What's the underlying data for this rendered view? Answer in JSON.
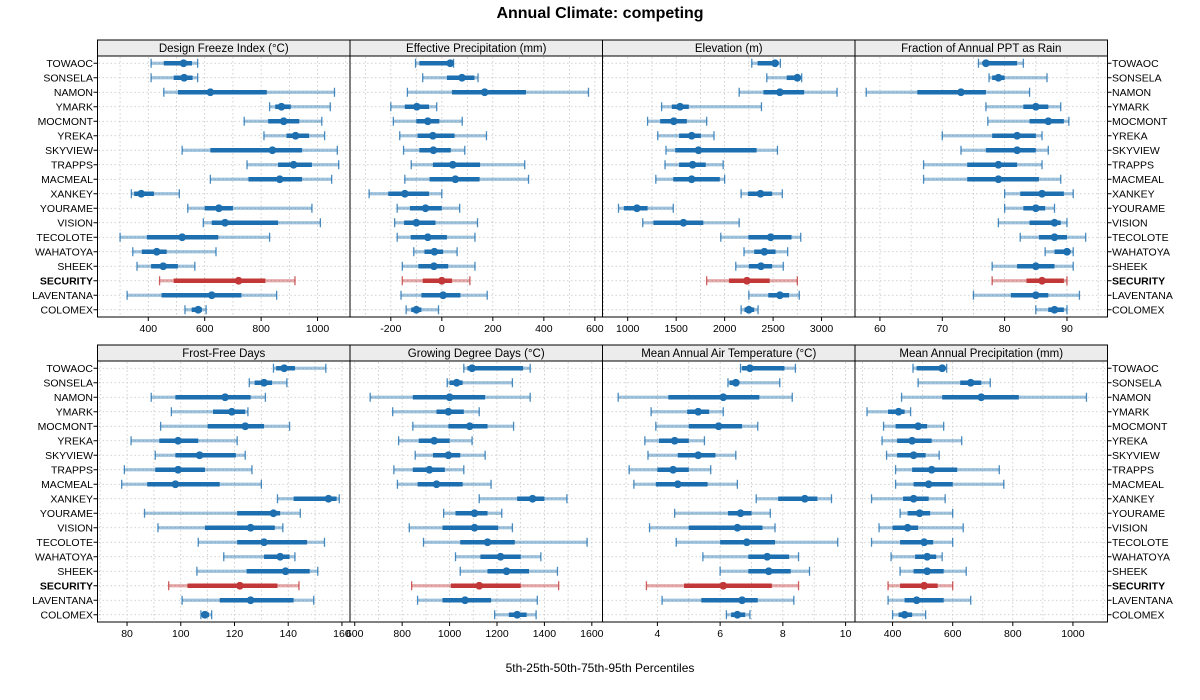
{
  "title": "Annual Climate: competing",
  "xlabel": "5th-25th-50th-75th-95th Percentiles",
  "colors": {
    "blue": "#1d6fb0",
    "red": "#c23737",
    "strip_bg": "#ececec",
    "grid": "#c3c3c3",
    "border": "#000000"
  },
  "chart_data": {
    "type": "interval",
    "note": "each row = [5th,25th,50th,75th,95th] percentiles per station",
    "percentile_labels": [
      5,
      25,
      50,
      75,
      95
    ],
    "stations": [
      "TOWAOC",
      "SONSELA",
      "NAMON",
      "YMARK",
      "MOCMONT",
      "YREKA",
      "SKYVIEW",
      "TRAPPS",
      "MACMEAL",
      "XANKEY",
      "YOURAME",
      "VISION",
      "TECOLOTE",
      "WAHATOYA",
      "SHEEK",
      "SECURITY",
      "LAVENTANA",
      "COLOMEX"
    ],
    "highlight": "SECURITY",
    "panels": [
      {
        "title": "Design Freeze Index (°C)",
        "grid_row": 0,
        "grid_col": 0,
        "xlim": [
          220,
          1115
        ],
        "ticks": [
          400,
          600,
          800,
          1000
        ],
        "grid_step": 100,
        "values": [
          [
            410,
            455,
            525,
            555,
            575
          ],
          [
            410,
            490,
            527,
            557,
            575
          ],
          [
            455,
            505,
            620,
            820,
            1060
          ],
          [
            830,
            850,
            872,
            905,
            1045
          ],
          [
            740,
            825,
            880,
            935,
            1015
          ],
          [
            810,
            890,
            922,
            970,
            1025
          ],
          [
            520,
            620,
            840,
            945,
            1070
          ],
          [
            750,
            860,
            915,
            980,
            1075
          ],
          [
            620,
            755,
            866,
            945,
            1050
          ],
          [
            340,
            350,
            375,
            420,
            510
          ],
          [
            540,
            600,
            650,
            700,
            980
          ],
          [
            595,
            625,
            672,
            860,
            1010
          ],
          [
            300,
            395,
            520,
            648,
            830
          ],
          [
            345,
            377,
            430,
            465,
            640
          ],
          [
            360,
            410,
            453,
            505,
            565
          ],
          [
            440,
            490,
            720,
            815,
            920
          ],
          [
            325,
            447,
            625,
            730,
            855
          ],
          [
            530,
            554,
            577,
            590,
            605
          ]
        ]
      },
      {
        "title": "Effective Precipitation (mm)",
        "grid_row": 0,
        "grid_col": 1,
        "xlim": [
          -360,
          630
        ],
        "ticks": [
          -200,
          0,
          200,
          400,
          600
        ],
        "grid_step": 100,
        "values": [
          [
            -103,
            -88,
            33,
            40,
            46
          ],
          [
            -75,
            20,
            79,
            128,
            142
          ],
          [
            -135,
            40,
            168,
            330,
            575
          ],
          [
            -200,
            -145,
            -98,
            -50,
            -20
          ],
          [
            -190,
            -100,
            -55,
            -10,
            80
          ],
          [
            -165,
            -95,
            -35,
            50,
            175
          ],
          [
            -150,
            -88,
            -33,
            35,
            90
          ],
          [
            -120,
            -35,
            43,
            150,
            325
          ],
          [
            -145,
            -48,
            53,
            148,
            340
          ],
          [
            -285,
            -210,
            -145,
            -50,
            0
          ],
          [
            -175,
            -125,
            -64,
            0,
            70
          ],
          [
            -185,
            -148,
            -100,
            -25,
            140
          ],
          [
            -175,
            -122,
            -55,
            20,
            130
          ],
          [
            -110,
            -68,
            -29,
            5,
            60
          ],
          [
            -155,
            -92,
            -31,
            25,
            130
          ],
          [
            -155,
            -75,
            0,
            40,
            110
          ],
          [
            -160,
            -80,
            5,
            73,
            178
          ],
          [
            -140,
            -120,
            -100,
            -80,
            -13
          ]
        ]
      },
      {
        "title": "Elevation (m)",
        "grid_row": 0,
        "grid_col": 2,
        "xlim": [
          740,
          3345
        ],
        "ticks": [
          1000,
          1500,
          2000,
          2500,
          3000
        ],
        "grid_step": 250,
        "values": [
          [
            2280,
            2340,
            2520,
            2550,
            2575
          ],
          [
            2435,
            2640,
            2750,
            2775,
            2795
          ],
          [
            2150,
            2400,
            2570,
            2820,
            3160
          ],
          [
            1350,
            1455,
            1540,
            1630,
            2380
          ],
          [
            1205,
            1335,
            1475,
            1610,
            1815
          ],
          [
            1310,
            1530,
            1660,
            1755,
            1890
          ],
          [
            1395,
            1490,
            1730,
            2330,
            2545
          ],
          [
            1385,
            1530,
            1670,
            1805,
            1985
          ],
          [
            1290,
            1470,
            1660,
            1950,
            2000
          ],
          [
            2170,
            2240,
            2370,
            2490,
            2595
          ],
          [
            905,
            960,
            1095,
            1205,
            1470
          ],
          [
            1155,
            1265,
            1575,
            1780,
            2150
          ],
          [
            1960,
            2245,
            2475,
            2690,
            2785
          ],
          [
            2200,
            2305,
            2410,
            2525,
            2650
          ],
          [
            2115,
            2250,
            2375,
            2490,
            2605
          ],
          [
            1815,
            2045,
            2230,
            2465,
            2750
          ],
          [
            2250,
            2450,
            2570,
            2665,
            2770
          ],
          [
            2170,
            2205,
            2250,
            2305,
            2345
          ]
        ]
      },
      {
        "title": "Fraction of Annual PPT as Rain",
        "grid_row": 0,
        "grid_col": 3,
        "xlim": [
          56,
          96.5
        ],
        "ticks": [
          60,
          70,
          80,
          90
        ],
        "grid_step": 5,
        "values": [
          [
            75.8,
            76.5,
            77,
            82,
            83
          ],
          [
            77.5,
            78,
            79,
            80,
            86.8
          ],
          [
            57.8,
            66,
            73,
            77,
            84
          ],
          [
            77,
            83,
            85,
            87,
            89
          ],
          [
            77.3,
            84,
            87,
            89.5,
            90.3
          ],
          [
            70,
            78,
            82,
            85,
            86
          ],
          [
            73,
            77,
            82,
            85,
            87
          ],
          [
            67,
            74,
            79,
            82,
            86
          ],
          [
            67,
            74,
            79,
            85.5,
            89
          ],
          [
            80,
            82.5,
            86,
            89.5,
            91
          ],
          [
            80,
            83,
            85,
            86.5,
            88
          ],
          [
            79,
            84,
            88,
            89,
            90
          ],
          [
            82.5,
            85.5,
            88,
            90,
            93
          ],
          [
            86.5,
            88,
            90,
            90.5,
            91
          ],
          [
            78,
            82,
            85,
            88,
            91
          ],
          [
            78,
            83.5,
            86,
            89.5,
            90
          ],
          [
            75,
            81,
            85,
            87,
            92
          ],
          [
            85,
            87,
            88,
            89.5,
            90
          ]
        ]
      },
      {
        "title": "Frost-Free Days",
        "grid_row": 1,
        "grid_col": 0,
        "xlim": [
          69,
          163
        ],
        "ticks": [
          80,
          100,
          120,
          140,
          160
        ],
        "grid_step": 10,
        "values": [
          [
            134.5,
            135.5,
            138.5,
            142.5,
            154
          ],
          [
            125.5,
            127.5,
            131,
            134,
            139.5
          ],
          [
            89,
            98,
            116.5,
            126,
            131.5
          ],
          [
            96.5,
            112,
            119,
            124,
            125
          ],
          [
            92.5,
            110,
            124,
            131,
            140.5
          ],
          [
            81.5,
            92,
            99,
            106.5,
            121
          ],
          [
            90.5,
            98,
            107,
            120.5,
            124
          ],
          [
            79,
            90.5,
            99,
            109,
            126.5
          ],
          [
            78,
            87.5,
            98,
            114.5,
            130
          ],
          [
            136,
            142,
            155,
            158,
            159
          ],
          [
            86.5,
            121,
            134.5,
            137,
            144.5
          ],
          [
            91.5,
            109,
            126,
            135,
            138
          ],
          [
            106.5,
            121,
            131,
            147,
            153.5
          ],
          [
            116,
            131,
            137,
            140.5,
            142.5
          ],
          [
            106,
            124.5,
            139,
            148,
            151
          ],
          [
            95.5,
            102.5,
            122,
            136,
            144
          ],
          [
            100.5,
            114.5,
            126,
            142,
            149.5
          ],
          [
            107.5,
            108,
            109,
            110.5,
            111.5
          ]
        ]
      },
      {
        "title": "Growing Degree Days (°C)",
        "grid_row": 1,
        "grid_col": 1,
        "xlim": [
          580,
          1645
        ],
        "ticks": [
          600,
          800,
          1000,
          1200,
          1400,
          1600
        ],
        "grid_step": 100,
        "values": [
          [
            1060,
            1075,
            1095,
            1310,
            1340
          ],
          [
            990,
            1000,
            1030,
            1055,
            1265
          ],
          [
            665,
            845,
            1000,
            1150,
            1340
          ],
          [
            760,
            945,
            995,
            1060,
            1125
          ],
          [
            845,
            995,
            1085,
            1160,
            1270
          ],
          [
            785,
            870,
            935,
            1000,
            1095
          ],
          [
            855,
            930,
            995,
            1045,
            1150
          ],
          [
            765,
            845,
            915,
            980,
            1060
          ],
          [
            780,
            865,
            945,
            1055,
            1175
          ],
          [
            1125,
            1285,
            1350,
            1400,
            1495
          ],
          [
            975,
            1025,
            1105,
            1160,
            1220
          ],
          [
            830,
            970,
            1105,
            1205,
            1265
          ],
          [
            890,
            1045,
            1160,
            1275,
            1580
          ],
          [
            1025,
            1130,
            1215,
            1300,
            1385
          ],
          [
            1045,
            1160,
            1240,
            1335,
            1455
          ],
          [
            840,
            1005,
            1125,
            1300,
            1460
          ],
          [
            865,
            970,
            1065,
            1175,
            1370
          ],
          [
            1190,
            1250,
            1285,
            1325,
            1365
          ]
        ]
      },
      {
        "title": "Mean Annual Air Temperature (°C)",
        "grid_row": 1,
        "grid_col": 2,
        "xlim": [
          2.25,
          10.3
        ],
        "ticks": [
          4,
          6,
          8,
          10
        ],
        "grid_step": 1,
        "values": [
          [
            6.65,
            6.7,
            6.95,
            8.05,
            8.4
          ],
          [
            6.25,
            6.3,
            6.5,
            6.6,
            7.9
          ],
          [
            2.75,
            4.35,
            6.1,
            7.25,
            8.3
          ],
          [
            3.8,
            4.95,
            5.3,
            5.65,
            6.1
          ],
          [
            3.95,
            5.0,
            5.95,
            6.7,
            7.2
          ],
          [
            3.6,
            4.05,
            4.55,
            5.0,
            5.5
          ],
          [
            3.7,
            4.65,
            5.3,
            5.85,
            6.5
          ],
          [
            3.1,
            4.0,
            4.5,
            5.0,
            5.7
          ],
          [
            3.25,
            3.95,
            4.65,
            5.6,
            6.55
          ],
          [
            7.15,
            7.85,
            8.7,
            9.1,
            9.55
          ],
          [
            4.55,
            6.25,
            6.65,
            7.0,
            7.6
          ],
          [
            3.75,
            5.0,
            6.55,
            7.35,
            7.75
          ],
          [
            4.6,
            6.0,
            6.85,
            7.75,
            9.75
          ],
          [
            5.45,
            6.9,
            7.5,
            8.2,
            8.5
          ],
          [
            6.0,
            6.9,
            7.55,
            8.25,
            8.85
          ],
          [
            3.65,
            4.85,
            6.1,
            7.65,
            8.5
          ],
          [
            4.15,
            5.4,
            6.7,
            7.2,
            8.35
          ],
          [
            6.2,
            6.35,
            6.55,
            6.8,
            6.95
          ]
        ]
      },
      {
        "title": "Mean Annual Precipitation (mm)",
        "grid_row": 1,
        "grid_col": 3,
        "xlim": [
          275,
          1115
        ],
        "ticks": [
          400,
          600,
          800,
          1000
        ],
        "grid_step": 100,
        "values": [
          [
            468,
            480,
            565,
            572,
            580
          ],
          [
            485,
            625,
            660,
            695,
            725
          ],
          [
            430,
            565,
            695,
            820,
            1045
          ],
          [
            315,
            385,
            420,
            440,
            460
          ],
          [
            370,
            410,
            485,
            515,
            570
          ],
          [
            365,
            415,
            465,
            530,
            630
          ],
          [
            380,
            415,
            470,
            510,
            555
          ],
          [
            410,
            465,
            530,
            615,
            755
          ],
          [
            410,
            470,
            520,
            600,
            770
          ],
          [
            330,
            435,
            470,
            520,
            575
          ],
          [
            425,
            450,
            490,
            525,
            600
          ],
          [
            355,
            400,
            450,
            485,
            635
          ],
          [
            330,
            425,
            505,
            535,
            600
          ],
          [
            395,
            475,
            515,
            545,
            565
          ],
          [
            425,
            470,
            515,
            570,
            645
          ],
          [
            385,
            425,
            505,
            550,
            600
          ],
          [
            385,
            440,
            480,
            570,
            660
          ],
          [
            400,
            420,
            440,
            465,
            510
          ]
        ]
      }
    ]
  }
}
